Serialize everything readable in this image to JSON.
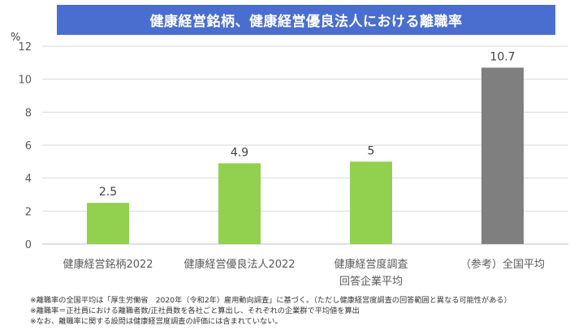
{
  "chart_data": {
    "type": "bar",
    "title": "健康経営銘柄、健康経営優良法人における離職率",
    "unit_label": "%",
    "categories": [
      [
        "健康経営銘柄2022"
      ],
      [
        "健康経営優良法人2022"
      ],
      [
        "健康経営度調査",
        "回答企業平均"
      ],
      [
        "（参考）全国平均"
      ]
    ],
    "values": [
      2.5,
      4.9,
      5,
      10.7
    ],
    "value_labels": [
      "2.5",
      "4.9",
      "5",
      "10.7"
    ],
    "bar_colors": [
      "#92d050",
      "#92d050",
      "#92d050",
      "#7f7f7f"
    ],
    "ylim": [
      0,
      12
    ],
    "yticks": [
      0,
      2,
      4,
      6,
      8,
      10,
      12
    ],
    "grid": true
  },
  "notes": [
    "※離職率の全国平均は「厚生労働省　2020年（令和2年）雇用動向調査」に基づく。（ただし健康経営度調査の回答範囲と異なる可能性がある）",
    "※離職率＝正社員における離職者数/正社員数を各社ごと算出し、それぞれの企業群で平均値を算出",
    "※なお、離職率に関する設問は健康経営度調査の評価には含まれていない。"
  ]
}
